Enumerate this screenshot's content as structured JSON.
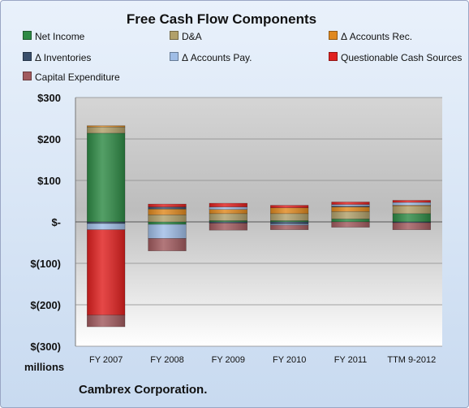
{
  "chart_data": {
    "type": "bar",
    "stacked": true,
    "title": "Free Cash Flow Components",
    "unit_label": "millions",
    "categories": [
      "FY 2007",
      "FY 2008",
      "FY 2009",
      "FY 2010",
      "FY 2011",
      "TTM 9-2012"
    ],
    "ylim": [
      -300,
      300
    ],
    "yticks": [
      300,
      200,
      100,
      0,
      -100,
      -200,
      -300
    ],
    "ytick_labels": [
      "$300",
      "$200",
      "$100",
      "$-",
      "$(100)",
      "$(200)",
      "$(300)"
    ],
    "grid": true,
    "legend_position": "top",
    "series": [
      {
        "name": "Net Income",
        "color": "#2e8a45",
        "values": [
          214,
          -6,
          3,
          3,
          7,
          20
        ]
      },
      {
        "name": "D&A",
        "color": "#b1a06a",
        "values": [
          15,
          17,
          17,
          17,
          18,
          19
        ]
      },
      {
        "name": "Δ Accounts Rec.",
        "color": "#e0891f",
        "values": [
          3,
          14,
          10,
          14,
          11,
          1
        ]
      },
      {
        "name": "Δ Inventories",
        "color": "#3a4f6c",
        "values": [
          -4,
          5,
          -3,
          -5,
          2,
          -2
        ]
      },
      {
        "name": "Δ Accounts Pay.",
        "color": "#9fbde6",
        "values": [
          -15,
          -34,
          6,
          -3,
          4,
          7
        ]
      },
      {
        "name": "Questionable Cash Sources",
        "color": "#e0201f",
        "values": [
          -206,
          7,
          9,
          6,
          6,
          5
        ]
      },
      {
        "name": "Capital Expenditure",
        "color": "#a15a5e",
        "values": [
          -28,
          -30,
          -17,
          -11,
          -13,
          -17
        ]
      }
    ]
  },
  "company": "Cambrex Corporation."
}
